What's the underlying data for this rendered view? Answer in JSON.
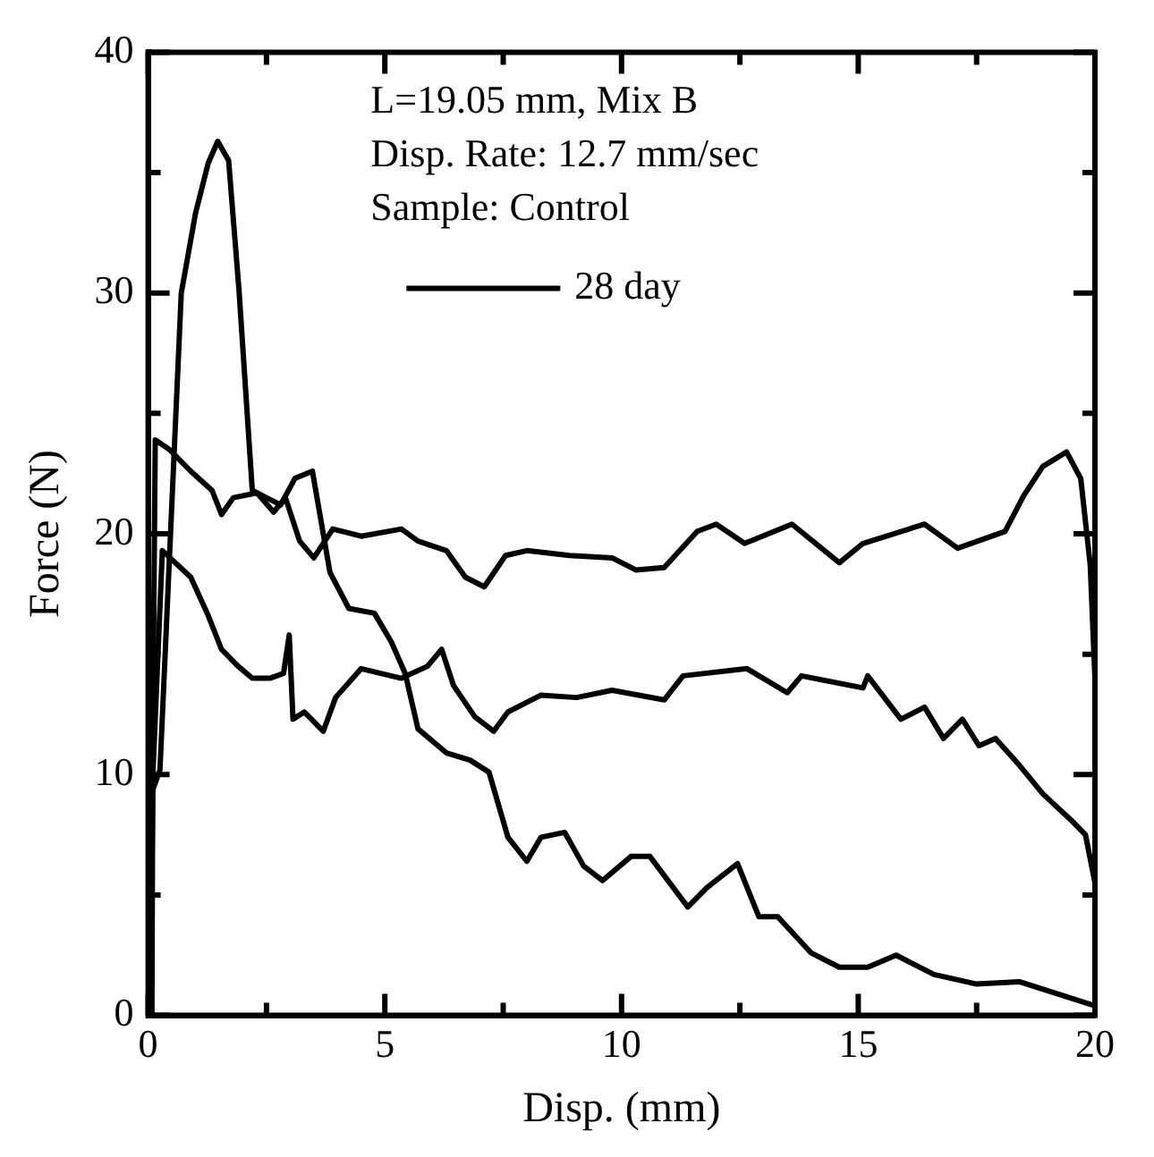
{
  "chart_data": {
    "type": "line",
    "xlabel": "Disp. (mm)",
    "ylabel": "Force (N)",
    "xlim": [
      0,
      20
    ],
    "xticks": [
      0,
      5,
      10,
      15,
      20
    ],
    "ylim": [
      0,
      40
    ],
    "yticks": [
      0,
      10,
      20,
      30,
      40
    ],
    "grid": false,
    "legend": "top",
    "annotations": [
      "L=19.05 mm, Mix B",
      "Disp. Rate: 12.7 mm/sec",
      "Sample: Control"
    ],
    "series": [
      {
        "name": "28 day",
        "color": "#000000",
        "x": [
          0.03,
          0.03,
          0.25,
          0.7,
          1.0,
          1.27,
          1.47,
          1.7,
          1.92,
          2.2,
          2.5,
          2.8,
          3.1,
          3.47,
          3.84,
          4.24,
          4.78,
          5.14,
          5.43,
          5.7,
          6.3,
          6.8,
          7.2,
          7.6,
          8.0,
          8.3,
          8.8,
          9.2,
          9.6,
          10.2,
          10.6,
          11.4,
          11.8,
          12.45,
          12.9,
          13.3,
          14.0,
          14.6,
          15.2,
          15.8,
          16.6,
          17.5,
          18.4,
          19.2,
          20
        ],
        "values": [
          0,
          9,
          10.2,
          30,
          33.3,
          35.4,
          36.3,
          35.5,
          30.1,
          21.8,
          21.5,
          21.2,
          22.3,
          22.6,
          18.4,
          16.9,
          16.7,
          15.5,
          14.2,
          11.9,
          10.9,
          10.6,
          10.1,
          7.4,
          6.4,
          7.4,
          7.6,
          6.2,
          5.6,
          6.6,
          6.6,
          4.5,
          5.3,
          6.3,
          4.1,
          4.1,
          2.6,
          2.0,
          2.0,
          2.5,
          1.7,
          1.3,
          1.4,
          0.9,
          0.4
        ]
      },
      {
        "color": "#000000",
        "x": [
          0.08,
          0.1,
          0.15,
          0.45,
          0.9,
          1.35,
          1.55,
          1.8,
          2.3,
          2.65,
          2.9,
          3.2,
          3.5,
          3.9,
          4.5,
          5.35,
          5.7,
          6.3,
          6.7,
          7.1,
          7.55,
          8.0,
          8.9,
          9.8,
          10.3,
          10.9,
          11.6,
          12.0,
          12.6,
          13.6,
          14.6,
          15.1,
          16.4,
          17.1,
          18.1,
          18.5,
          18.9,
          19.4,
          19.7,
          19.9,
          20
        ],
        "values": [
          0,
          12,
          23.9,
          23.5,
          22.6,
          21.8,
          20.8,
          21.5,
          21.7,
          20.9,
          21.5,
          19.7,
          19.0,
          20.2,
          19.9,
          20.2,
          19.7,
          19.3,
          18.2,
          17.8,
          19.1,
          19.3,
          19.1,
          19.0,
          18.5,
          18.6,
          20.1,
          20.4,
          19.6,
          20.4,
          18.8,
          19.6,
          20.4,
          19.4,
          20.1,
          21.6,
          22.8,
          23.4,
          22.3,
          18.7,
          14
        ]
      },
      {
        "color": "#000000",
        "x": [
          0.05,
          0.1,
          0.3,
          0.9,
          1.27,
          1.55,
          1.9,
          2.2,
          2.57,
          2.86,
          2.98,
          3.06,
          3.3,
          3.7,
          3.96,
          4.5,
          5.35,
          5.9,
          6.2,
          6.45,
          6.9,
          7.3,
          7.6,
          8.3,
          9.05,
          9.8,
          10.9,
          11.3,
          12.65,
          13.5,
          13.8,
          15.1,
          15.2,
          15.9,
          16.4,
          16.8,
          17.2,
          17.55,
          17.9,
          18.4,
          18.9,
          19.5,
          19.8,
          20
        ],
        "values": [
          0,
          10,
          19.3,
          18.2,
          16.6,
          15.2,
          14.5,
          14.0,
          14.0,
          14.2,
          15.8,
          12.3,
          12.6,
          11.8,
          13.2,
          14.4,
          14.0,
          14.5,
          15.2,
          13.7,
          12.4,
          11.8,
          12.6,
          13.3,
          13.2,
          13.5,
          13.1,
          14.1,
          14.4,
          13.4,
          14.1,
          13.6,
          14.1,
          12.3,
          12.8,
          11.5,
          12.3,
          11.2,
          11.5,
          10.4,
          9.2,
          8.1,
          7.5,
          5.5
        ]
      }
    ]
  }
}
